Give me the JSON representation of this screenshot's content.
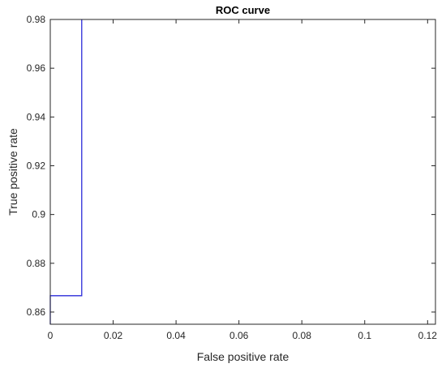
{
  "chart_data": {
    "type": "line",
    "title": "ROC curve",
    "xlabel": "False positive rate",
    "ylabel": "True positive rate",
    "xlim": [
      0,
      0.1225
    ],
    "ylim": [
      0.855,
      0.98
    ],
    "x_ticks": [
      "0",
      "0.02",
      "0.04",
      "0.06",
      "0.08",
      "0.1",
      "0.12"
    ],
    "x_tick_values": [
      0,
      0.02,
      0.04,
      0.06,
      0.08,
      0.1,
      0.12
    ],
    "y_ticks": [
      "0.86",
      "0.88",
      "0.9",
      "0.92",
      "0.94",
      "0.96",
      "0.98"
    ],
    "y_tick_values": [
      0.86,
      0.88,
      0.9,
      0.92,
      0.94,
      0.96,
      0.98
    ],
    "grid": false,
    "legend": "none",
    "series": [
      {
        "color": "#2b2bd9",
        "x": [
          0,
          0,
          0.01,
          0.01
        ],
        "y": [
          0.855,
          0.8667,
          0.8667,
          0.98
        ]
      }
    ]
  }
}
